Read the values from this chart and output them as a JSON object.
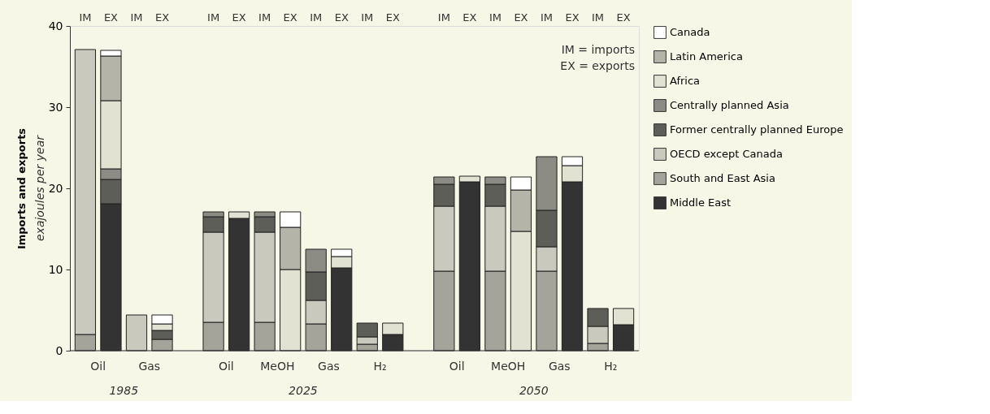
{
  "chart_data": {
    "type": "bar",
    "stacked": true,
    "ylabel": "Imports and exports",
    "categories": [
      "IM",
      "EX",
      "IM",
      "EX",
      "IM",
      "EX",
      "IM",
      "EX",
      "IM",
      "EX",
      "IM",
      "EX",
      "IM",
      "EX",
      "IM",
      "EX",
      "IM",
      "EX",
      "IM",
      "EX"
    ],
    "series": [
      {
        "name": "Middle East",
        "color": "#333333",
        "values": [
          null,
          18.1,
          null,
          null,
          null,
          16.3,
          null,
          null,
          null,
          10.2,
          null,
          2.0,
          null,
          20.8,
          null,
          null,
          null,
          20.8,
          null,
          3.2
        ]
      },
      {
        "name": "South and East Asia",
        "color": "#a4a49a",
        "values": [
          2.0,
          null,
          null,
          1.4,
          3.5,
          null,
          3.5,
          null,
          3.3,
          null,
          0.8,
          null,
          9.8,
          null,
          9.8,
          null,
          9.8,
          null,
          0.9,
          null
        ]
      },
      {
        "name": "OECD except Canada",
        "color": "#c9c9bd",
        "values": [
          35.1,
          null,
          4.4,
          null,
          11.1,
          null,
          11.1,
          null,
          2.9,
          null,
          0.9,
          null,
          8.0,
          null,
          8.0,
          null,
          3.0,
          null,
          2.1,
          null
        ]
      },
      {
        "name": "Former centrally planned Europe",
        "color": "#5e5e58",
        "values": [
          null,
          3.0,
          null,
          1.1,
          1.9,
          null,
          1.9,
          null,
          3.5,
          null,
          1.7,
          null,
          2.7,
          null,
          2.7,
          null,
          4.5,
          null,
          2.2,
          null
        ]
      },
      {
        "name": "Centrally planned Asia",
        "color": "#8c8c84",
        "values": [
          null,
          1.3,
          null,
          null,
          0.6,
          null,
          0.6,
          null,
          2.8,
          null,
          null,
          null,
          0.9,
          null,
          0.9,
          null,
          6.6,
          null,
          null,
          null
        ]
      },
      {
        "name": "Africa",
        "color": "#e2e2d2",
        "values": [
          null,
          8.4,
          null,
          0.8,
          null,
          0.8,
          null,
          10.0,
          null,
          1.4,
          null,
          1.4,
          null,
          0.7,
          null,
          14.7,
          null,
          2.0,
          null,
          2.0
        ]
      },
      {
        "name": "Latin America",
        "color": "#b4b4a8",
        "values": [
          null,
          5.5,
          null,
          null,
          null,
          null,
          null,
          5.2,
          null,
          null,
          null,
          null,
          null,
          null,
          null,
          5.1,
          null,
          null,
          null,
          null
        ]
      },
      {
        "name": "Canada",
        "color": "#ffffff",
        "values": [
          null,
          0.7,
          null,
          1.1,
          null,
          null,
          null,
          1.9,
          null,
          0.9,
          null,
          null,
          null,
          null,
          null,
          1.6,
          null,
          1.1,
          null,
          null
        ]
      }
    ],
    "ylim": [
      0,
      40
    ],
    "yticks": [
      0,
      10,
      20,
      30,
      40
    ],
    "grid": false,
    "legend": "right",
    "annotations": [
      "IM = imports",
      "EX = exports",
      "exajoules per year",
      "Oil",
      "Gas",
      "Oil",
      "MeOH",
      "Gas",
      "H₂",
      "Oil",
      "MeOH",
      "Gas",
      "H₂",
      "1985",
      "2025",
      "2050"
    ]
  }
}
